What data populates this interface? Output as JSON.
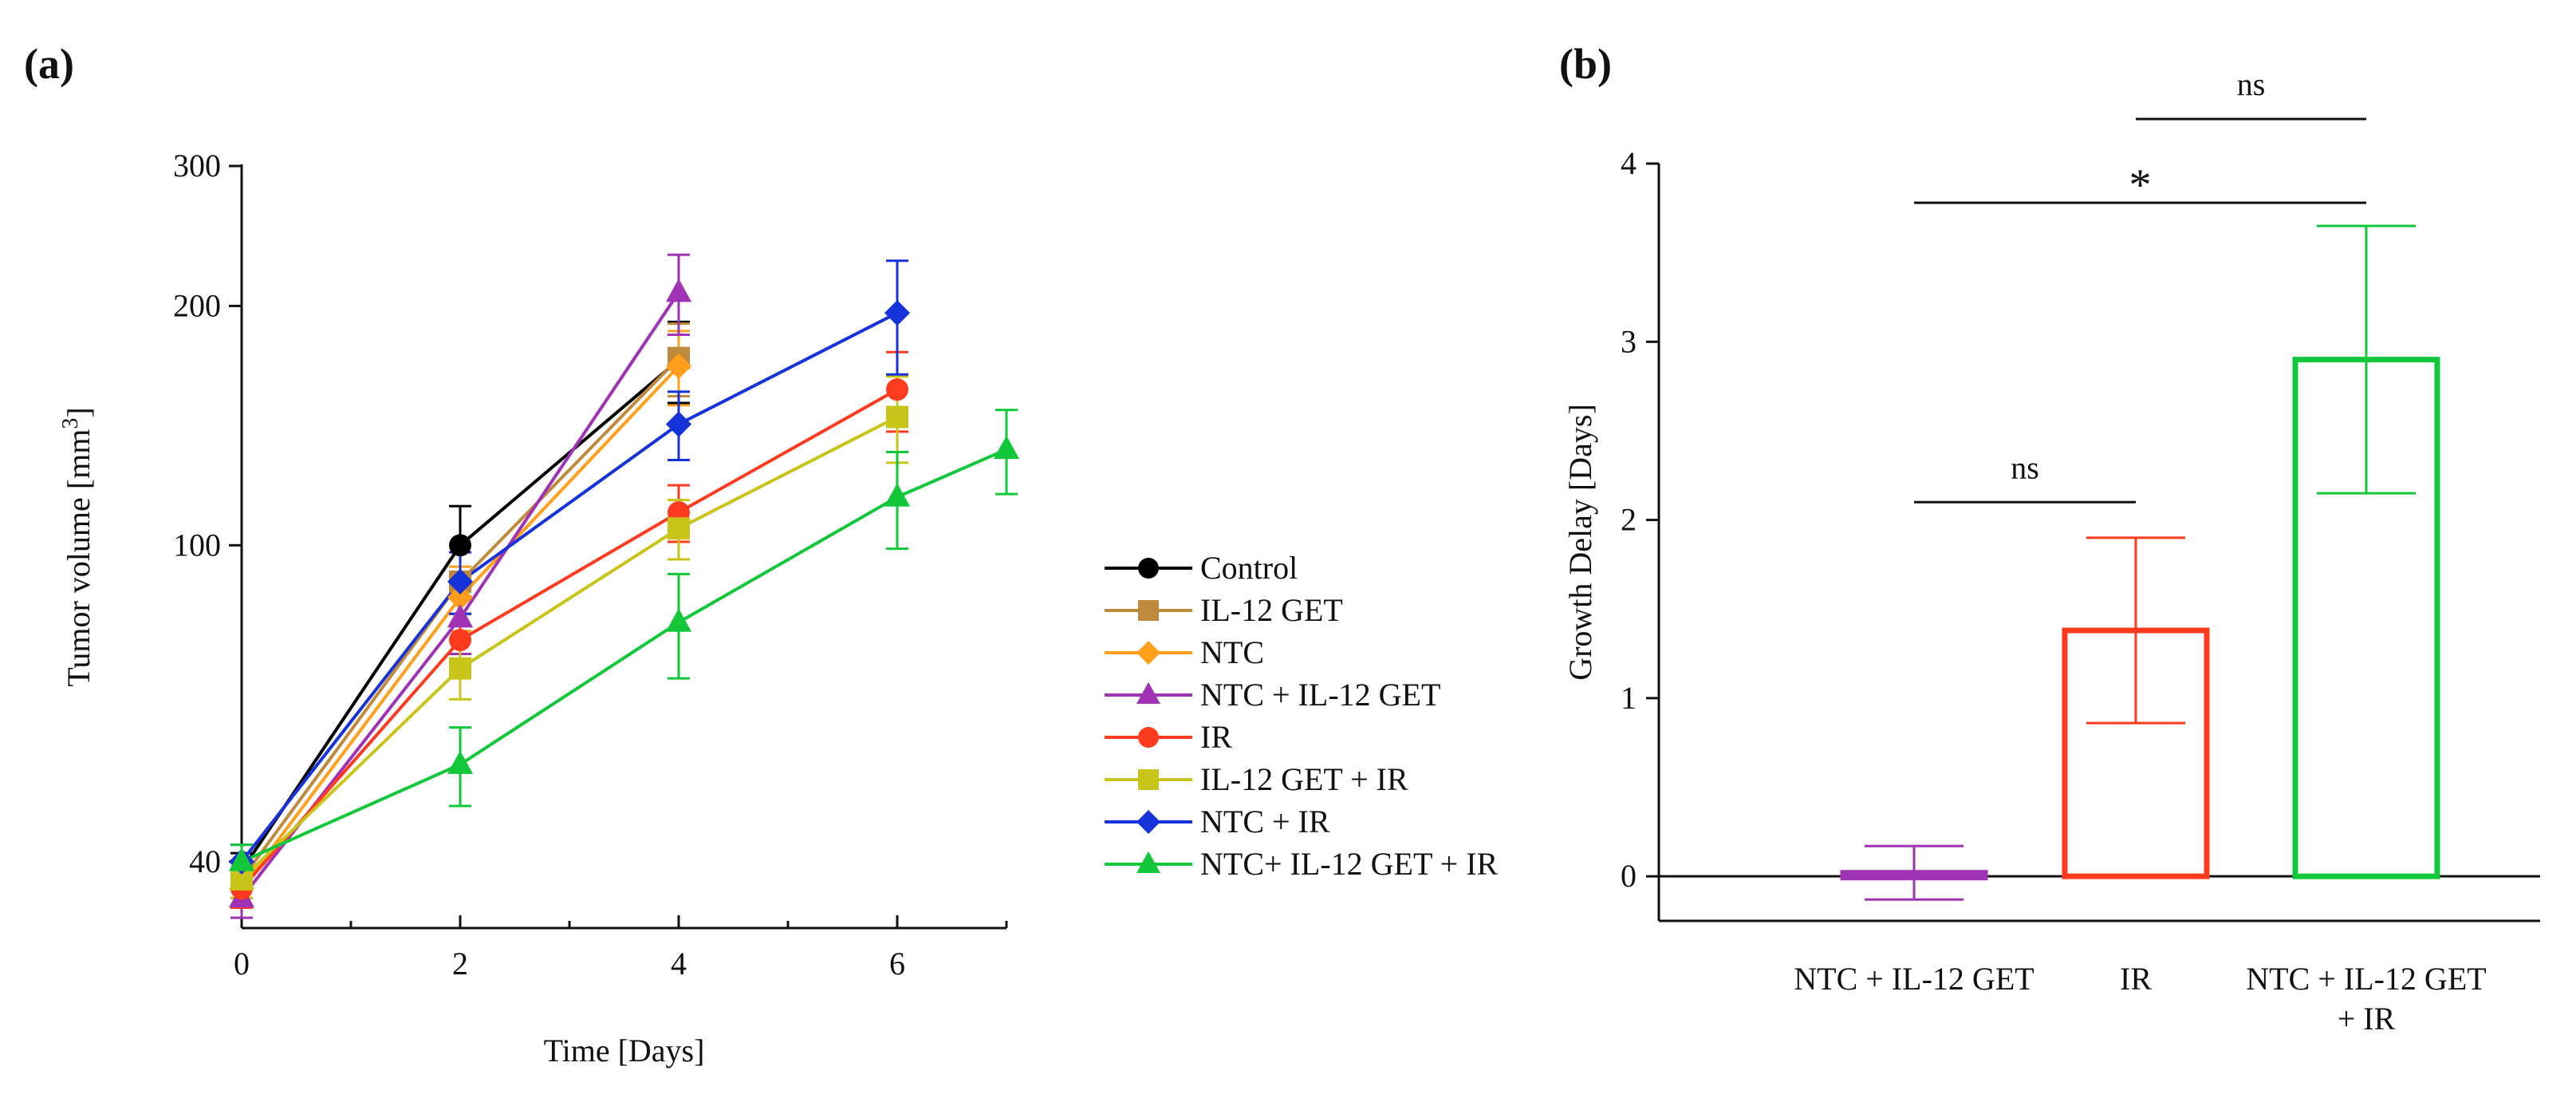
{
  "chart_data": [
    {
      "panel_label": "(a)",
      "type": "line",
      "xlabel": "Time [Days]",
      "ylabel_main": "Tumor volume [mm",
      "ylabel_sup": "3",
      "ylabel_close": "]",
      "y_scale": "log",
      "xlim": [
        0,
        7
      ],
      "ylim": [
        33,
        300
      ],
      "x_ticks": [
        {
          "value": 0,
          "label": "0"
        },
        {
          "value": 2,
          "label": "2"
        },
        {
          "value": 4,
          "label": "4"
        },
        {
          "value": 6,
          "label": "6"
        }
      ],
      "x_minor_ticks": [
        1,
        3,
        5,
        7
      ],
      "y_ticks": [
        {
          "value": 40,
          "label": "40"
        },
        {
          "value": 100,
          "label": "100"
        },
        {
          "value": 200,
          "label": "200"
        },
        {
          "value": 300,
          "label": "300"
        }
      ],
      "legend_position": "right",
      "series": [
        {
          "name": "Control",
          "color": "#000000",
          "marker": "circle",
          "x": [
            0,
            2,
            4
          ],
          "y": [
            39,
            100,
            171
          ],
          "err": [
            2,
            12,
            20
          ]
        },
        {
          "name": "IL-12 GET",
          "color": "#C08A3C",
          "marker": "square",
          "x": [
            0,
            2,
            4
          ],
          "y": [
            38,
            90,
            172
          ],
          "err": [
            2,
            8,
            18
          ]
        },
        {
          "name": "NTC",
          "color": "#FF9F1C",
          "marker": "diamond",
          "x": [
            0,
            2,
            4
          ],
          "y": [
            37,
            86,
            168
          ],
          "err": [
            2,
            8,
            18
          ]
        },
        {
          "name": "NTC + IL-12 GET",
          "color": "#A033B5",
          "marker": "triangle",
          "x": [
            0,
            2,
            4
          ],
          "y": [
            36,
            81,
            208
          ],
          "err": [
            2,
            8,
            24
          ]
        },
        {
          "name": "IR",
          "color": "#FF3B1F",
          "marker": "circle",
          "x": [
            0,
            2,
            4,
            6
          ],
          "y": [
            37,
            76,
            110,
            157
          ],
          "err": [
            2,
            6,
            9,
            18
          ]
        },
        {
          "name": "IL-12 GET + IR",
          "color": "#C8C41A",
          "marker": "square",
          "x": [
            0,
            2,
            4,
            6
          ],
          "y": [
            38,
            70,
            105,
            145
          ],
          "err": [
            2,
            6,
            9,
            18
          ]
        },
        {
          "name": "NTC + IR",
          "color": "#1633D9",
          "marker": "diamond",
          "x": [
            0,
            2,
            4,
            6
          ],
          "y": [
            40,
            90,
            142,
            196
          ],
          "err": [
            2,
            8,
            14,
            32
          ]
        },
        {
          "name": "NTC+ IL-12 GET + IR",
          "color": "#12C83A",
          "marker": "triangle",
          "x": [
            0,
            2,
            4,
            6,
            7
          ],
          "y": [
            40,
            53,
            80,
            115,
            132
          ],
          "err": [
            2,
            6,
            12,
            16,
            16
          ]
        }
      ]
    },
    {
      "panel_label": "(b)",
      "type": "bar",
      "ylabel": "Growth Delay [Days]",
      "ylim": [
        -0.25,
        4
      ],
      "y_ticks": [
        {
          "value": 0,
          "label": "0"
        },
        {
          "value": 1,
          "label": "1"
        },
        {
          "value": 2,
          "label": "2"
        },
        {
          "value": 3,
          "label": "3"
        },
        {
          "value": 4,
          "label": "4"
        }
      ],
      "categories": [
        {
          "lines": [
            "NTC + IL-12 GET"
          ],
          "value": 0.02,
          "err": 0.15,
          "color": "#A033B5"
        },
        {
          "lines": [
            "IR"
          ],
          "value": 1.38,
          "err": 0.52,
          "color": "#FF3B1F"
        },
        {
          "lines": [
            "NTC + IL-12 GET",
            "+ IR"
          ],
          "value": 2.9,
          "err": 0.75,
          "color": "#12C83A"
        }
      ],
      "significance": [
        {
          "label": "ns",
          "from": 0,
          "to": 1,
          "y": 2.1
        },
        {
          "label": "*",
          "from": 0,
          "to": 2,
          "y": 3.78
        },
        {
          "label": "ns",
          "from": 1,
          "to": 2,
          "y": 4.25
        }
      ]
    }
  ]
}
